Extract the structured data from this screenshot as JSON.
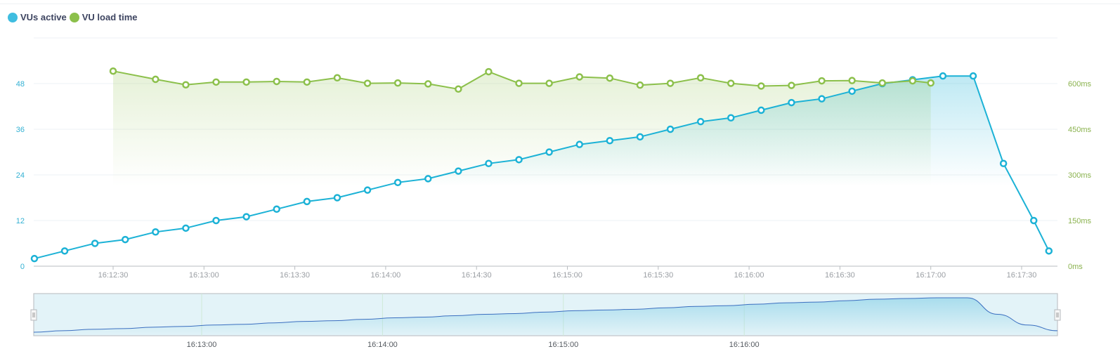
{
  "legend": {
    "items": [
      {
        "label": "VUs active",
        "color": "#1cb2d6"
      },
      {
        "label": "VU load time",
        "color": "#8cc04b"
      }
    ]
  },
  "chart_data": {
    "type": "line",
    "title": "",
    "xlabel": "",
    "grid": true,
    "legend_position": "top-left",
    "x_ticks": [
      "16:12:30",
      "16:13:00",
      "16:13:30",
      "16:14:00",
      "16:14:30",
      "16:15:00",
      "16:15:30",
      "16:16:00",
      "16:16:30",
      "16:17:00",
      "16:17:30"
    ],
    "y_left": {
      "ticks": [
        "0",
        "12",
        "24",
        "36",
        "48"
      ],
      "range": [
        0,
        60
      ],
      "color": "#33b1d3"
    },
    "y_right": {
      "ticks": [
        "0ms",
        "150ms",
        "300ms",
        "450ms",
        "600ms"
      ],
      "range": [
        0,
        750
      ],
      "unit": "ms",
      "color": "#8ab24e"
    },
    "series": [
      {
        "name": "VUs active",
        "axis": "left",
        "color": "#1cb2d6",
        "x": [
          "16:12:04",
          "16:12:14",
          "16:12:24",
          "16:12:34",
          "16:12:44",
          "16:12:54",
          "16:13:04",
          "16:13:14",
          "16:13:24",
          "16:13:34",
          "16:13:44",
          "16:13:54",
          "16:14:04",
          "16:14:14",
          "16:14:24",
          "16:14:34",
          "16:14:44",
          "16:14:54",
          "16:15:04",
          "16:15:14",
          "16:15:24",
          "16:15:34",
          "16:15:44",
          "16:15:54",
          "16:16:04",
          "16:16:14",
          "16:16:24",
          "16:16:34",
          "16:16:44",
          "16:16:54",
          "16:17:04",
          "16:17:14",
          "16:17:24",
          "16:17:34",
          "16:17:39"
        ],
        "values": [
          2,
          4,
          6,
          7,
          9,
          10,
          12,
          13,
          15,
          17,
          18,
          20,
          22,
          23,
          25,
          27,
          28,
          30,
          32,
          33,
          34,
          36,
          38,
          39,
          41,
          43,
          44,
          46,
          48,
          49,
          50,
          50,
          27,
          12,
          4
        ]
      },
      {
        "name": "VU load time",
        "axis": "right",
        "color": "#8cc04b",
        "x": [
          "16:12:30",
          "16:12:44",
          "16:12:54",
          "16:13:04",
          "16:13:14",
          "16:13:24",
          "16:13:34",
          "16:13:44",
          "16:13:54",
          "16:14:04",
          "16:14:14",
          "16:14:24",
          "16:14:34",
          "16:14:44",
          "16:14:54",
          "16:15:04",
          "16:15:14",
          "16:15:24",
          "16:15:34",
          "16:15:44",
          "16:15:54",
          "16:16:04",
          "16:16:14",
          "16:16:24",
          "16:16:34",
          "16:16:44",
          "16:16:54",
          "16:17:00"
        ],
        "values": [
          641,
          614,
          596,
          605,
          605,
          607,
          605,
          619,
          601,
          602,
          599,
          582,
          639,
          601,
          601,
          622,
          618,
          595,
          601,
          619,
          601,
          592,
          594,
          609,
          610,
          602,
          609,
          602
        ]
      }
    ]
  },
  "navigator": {
    "x_ticks": [
      "16:13:00",
      "16:14:00",
      "16:15:00",
      "16:16:00"
    ],
    "fill_color": "#e3f3f8",
    "line_color": "#3b6fc0"
  }
}
